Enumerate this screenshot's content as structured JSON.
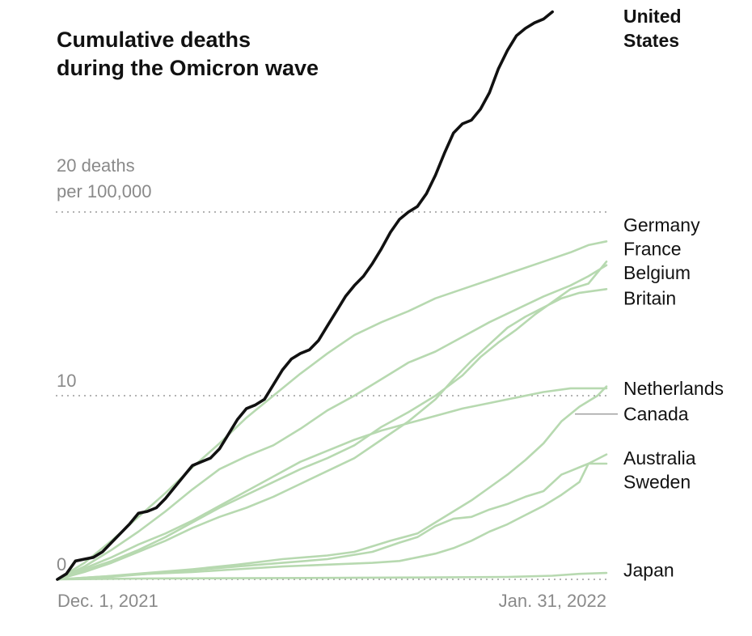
{
  "chart_data": {
    "type": "line",
    "title_lines": [
      "Cumulative deaths",
      "during the Omicron wave"
    ],
    "ylabel_lines": [
      "20 deaths",
      "per 100,000"
    ],
    "ylim": [
      0,
      31
    ],
    "y_ticks": [
      {
        "value": 0,
        "label": "0"
      },
      {
        "value": 10,
        "label": "10"
      },
      {
        "value": 20,
        "label": ""
      }
    ],
    "xlim": [
      0,
      61
    ],
    "x_ticks": [
      {
        "value": 0,
        "label": "Dec. 1, 2021"
      },
      {
        "value": 61,
        "label": "Jan. 31, 2022"
      }
    ],
    "colors": {
      "highlight": "#111111",
      "other": "#b7d9b0",
      "grid": "#9a9a9a",
      "leader": "#999999"
    },
    "series": [
      {
        "name": "Japan",
        "label": "Japan",
        "highlight": false,
        "label_y": 0.5,
        "points": [
          [
            0,
            0
          ],
          [
            10,
            0.05
          ],
          [
            20,
            0.06
          ],
          [
            30,
            0.08
          ],
          [
            40,
            0.1
          ],
          [
            50,
            0.13
          ],
          [
            55,
            0.2
          ],
          [
            58,
            0.3
          ],
          [
            61,
            0.35
          ]
        ]
      },
      {
        "name": "Sweden",
        "label": "Sweden",
        "highlight": false,
        "label_y": 5.3,
        "points": [
          [
            0,
            0
          ],
          [
            5,
            0.15
          ],
          [
            10,
            0.3
          ],
          [
            15,
            0.4
          ],
          [
            20,
            0.55
          ],
          [
            25,
            0.7
          ],
          [
            30,
            0.8
          ],
          [
            35,
            0.9
          ],
          [
            38,
            1.0
          ],
          [
            40,
            1.2
          ],
          [
            42,
            1.4
          ],
          [
            44,
            1.7
          ],
          [
            46,
            2.1
          ],
          [
            48,
            2.6
          ],
          [
            50,
            3.0
          ],
          [
            52,
            3.5
          ],
          [
            54,
            4.0
          ],
          [
            56,
            4.6
          ],
          [
            58,
            5.3
          ],
          [
            59,
            6.3
          ],
          [
            61,
            6.3
          ]
        ]
      },
      {
        "name": "Australia",
        "label": "Australia",
        "highlight": false,
        "label_y": 6.6,
        "points": [
          [
            0,
            0
          ],
          [
            5,
            0.1
          ],
          [
            10,
            0.3
          ],
          [
            15,
            0.5
          ],
          [
            20,
            0.7
          ],
          [
            25,
            0.9
          ],
          [
            30,
            1.1
          ],
          [
            35,
            1.5
          ],
          [
            38,
            2.0
          ],
          [
            40,
            2.3
          ],
          [
            42,
            2.9
          ],
          [
            44,
            3.3
          ],
          [
            46,
            3.4
          ],
          [
            48,
            3.8
          ],
          [
            50,
            4.1
          ],
          [
            52,
            4.5
          ],
          [
            54,
            4.8
          ],
          [
            56,
            5.7
          ],
          [
            57,
            5.9
          ],
          [
            58,
            6.1
          ],
          [
            59,
            6.3
          ],
          [
            61,
            6.8
          ]
        ]
      },
      {
        "name": "Canada",
        "label": "Canada",
        "highlight": false,
        "label_y": 9.0,
        "points": [
          [
            0,
            0
          ],
          [
            5,
            0.15
          ],
          [
            10,
            0.35
          ],
          [
            15,
            0.55
          ],
          [
            20,
            0.8
          ],
          [
            25,
            1.1
          ],
          [
            30,
            1.3
          ],
          [
            33,
            1.5
          ],
          [
            35,
            1.8
          ],
          [
            37,
            2.1
          ],
          [
            40,
            2.5
          ],
          [
            42,
            3.1
          ],
          [
            44,
            3.7
          ],
          [
            46,
            4.3
          ],
          [
            48,
            5.0
          ],
          [
            50,
            5.7
          ],
          [
            52,
            6.5
          ],
          [
            54,
            7.4
          ],
          [
            56,
            8.6
          ],
          [
            58,
            9.4
          ],
          [
            60,
            10.0
          ],
          [
            61,
            10.5
          ]
        ]
      },
      {
        "name": "Netherlands",
        "label": "Netherlands",
        "highlight": false,
        "label_y": 10.4,
        "points": [
          [
            0,
            0
          ],
          [
            3,
            0.6
          ],
          [
            6,
            1.2
          ],
          [
            9,
            1.9
          ],
          [
            12,
            2.5
          ],
          [
            15,
            3.2
          ],
          [
            18,
            4.0
          ],
          [
            21,
            4.8
          ],
          [
            24,
            5.6
          ],
          [
            27,
            6.4
          ],
          [
            30,
            7.0
          ],
          [
            33,
            7.6
          ],
          [
            36,
            8.1
          ],
          [
            39,
            8.5
          ],
          [
            42,
            8.9
          ],
          [
            45,
            9.3
          ],
          [
            48,
            9.6
          ],
          [
            51,
            9.9
          ],
          [
            54,
            10.2
          ],
          [
            57,
            10.4
          ],
          [
            61,
            10.4
          ]
        ]
      },
      {
        "name": "Britain",
        "label": "Britain",
        "highlight": false,
        "label_y": 15.3,
        "points": [
          [
            0,
            0
          ],
          [
            3,
            0.4
          ],
          [
            6,
            0.9
          ],
          [
            9,
            1.5
          ],
          [
            12,
            2.1
          ],
          [
            15,
            2.8
          ],
          [
            18,
            3.4
          ],
          [
            21,
            3.9
          ],
          [
            24,
            4.5
          ],
          [
            27,
            5.2
          ],
          [
            30,
            5.9
          ],
          [
            33,
            6.6
          ],
          [
            36,
            7.6
          ],
          [
            39,
            8.6
          ],
          [
            42,
            9.8
          ],
          [
            44,
            10.9
          ],
          [
            46,
            11.9
          ],
          [
            48,
            12.8
          ],
          [
            50,
            13.7
          ],
          [
            52,
            14.3
          ],
          [
            54,
            14.8
          ],
          [
            56,
            15.3
          ],
          [
            58,
            15.6
          ],
          [
            61,
            15.8
          ]
        ]
      },
      {
        "name": "Belgium",
        "label": "Belgium",
        "highlight": false,
        "label_y": 16.7,
        "points": [
          [
            0,
            0
          ],
          [
            3,
            0.5
          ],
          [
            6,
            1.0
          ],
          [
            9,
            1.6
          ],
          [
            12,
            2.3
          ],
          [
            15,
            3.1
          ],
          [
            18,
            3.9
          ],
          [
            21,
            4.6
          ],
          [
            24,
            5.3
          ],
          [
            27,
            6.0
          ],
          [
            30,
            6.6
          ],
          [
            33,
            7.3
          ],
          [
            36,
            8.3
          ],
          [
            39,
            9.1
          ],
          [
            42,
            10.0
          ],
          [
            45,
            11.1
          ],
          [
            47,
            12.1
          ],
          [
            49,
            12.9
          ],
          [
            51,
            13.6
          ],
          [
            53,
            14.4
          ],
          [
            55,
            15.1
          ],
          [
            57,
            15.8
          ],
          [
            59,
            16.1
          ],
          [
            61,
            17.3
          ]
        ]
      },
      {
        "name": "France",
        "label": "France",
        "highlight": false,
        "label_y": 18.0,
        "points": [
          [
            0,
            0
          ],
          [
            3,
            0.7
          ],
          [
            6,
            1.6
          ],
          [
            9,
            2.6
          ],
          [
            12,
            3.7
          ],
          [
            15,
            4.9
          ],
          [
            18,
            6.0
          ],
          [
            21,
            6.7
          ],
          [
            24,
            7.3
          ],
          [
            27,
            8.2
          ],
          [
            30,
            9.2
          ],
          [
            33,
            10.0
          ],
          [
            36,
            10.9
          ],
          [
            39,
            11.8
          ],
          [
            42,
            12.4
          ],
          [
            45,
            13.2
          ],
          [
            48,
            14.0
          ],
          [
            51,
            14.7
          ],
          [
            54,
            15.4
          ],
          [
            57,
            16.0
          ],
          [
            59,
            16.5
          ],
          [
            61,
            17.1
          ]
        ]
      },
      {
        "name": "Germany",
        "label": "Germany",
        "highlight": false,
        "label_y": 19.3,
        "points": [
          [
            0,
            0
          ],
          [
            3,
            0.9
          ],
          [
            6,
            2.1
          ],
          [
            9,
            3.4
          ],
          [
            12,
            4.7
          ],
          [
            15,
            6.1
          ],
          [
            18,
            7.4
          ],
          [
            21,
            8.8
          ],
          [
            24,
            10.0
          ],
          [
            27,
            11.2
          ],
          [
            30,
            12.3
          ],
          [
            33,
            13.3
          ],
          [
            36,
            14.0
          ],
          [
            39,
            14.6
          ],
          [
            42,
            15.3
          ],
          [
            45,
            15.8
          ],
          [
            48,
            16.3
          ],
          [
            51,
            16.8
          ],
          [
            54,
            17.3
          ],
          [
            57,
            17.8
          ],
          [
            59,
            18.2
          ],
          [
            61,
            18.4
          ]
        ]
      },
      {
        "name": "United States",
        "label": "United States",
        "label_lines": [
          "United",
          "States"
        ],
        "highlight": true,
        "label_y": 30.0,
        "points": [
          [
            0,
            0
          ],
          [
            1,
            0.3
          ],
          [
            2,
            1.0
          ],
          [
            3,
            1.1
          ],
          [
            4,
            1.2
          ],
          [
            5,
            1.5
          ],
          [
            6,
            2.0
          ],
          [
            7,
            2.5
          ],
          [
            8,
            3.0
          ],
          [
            9,
            3.6
          ],
          [
            10,
            3.7
          ],
          [
            11,
            3.9
          ],
          [
            12,
            4.4
          ],
          [
            13,
            5.0
          ],
          [
            14,
            5.6
          ],
          [
            15,
            6.2
          ],
          [
            16,
            6.4
          ],
          [
            17,
            6.6
          ],
          [
            18,
            7.1
          ],
          [
            19,
            7.9
          ],
          [
            20,
            8.7
          ],
          [
            21,
            9.3
          ],
          [
            22,
            9.5
          ],
          [
            23,
            9.8
          ],
          [
            24,
            10.6
          ],
          [
            25,
            11.4
          ],
          [
            26,
            12.0
          ],
          [
            27,
            12.3
          ],
          [
            28,
            12.5
          ],
          [
            29,
            13.0
          ],
          [
            30,
            13.8
          ],
          [
            31,
            14.6
          ],
          [
            32,
            15.4
          ],
          [
            33,
            16.0
          ],
          [
            34,
            16.5
          ],
          [
            35,
            17.2
          ],
          [
            36,
            18.0
          ],
          [
            37,
            18.9
          ],
          [
            38,
            19.6
          ],
          [
            39,
            20.0
          ],
          [
            40,
            20.3
          ],
          [
            41,
            21.0
          ],
          [
            42,
            22.0
          ],
          [
            43,
            23.2
          ],
          [
            44,
            24.3
          ],
          [
            45,
            24.8
          ],
          [
            46,
            25.0
          ],
          [
            47,
            25.6
          ],
          [
            48,
            26.5
          ],
          [
            49,
            27.8
          ],
          [
            50,
            28.8
          ],
          [
            51,
            29.6
          ],
          [
            52,
            30.0
          ],
          [
            53,
            30.3
          ],
          [
            54,
            30.5
          ],
          [
            55,
            30.9
          ]
        ]
      }
    ]
  }
}
